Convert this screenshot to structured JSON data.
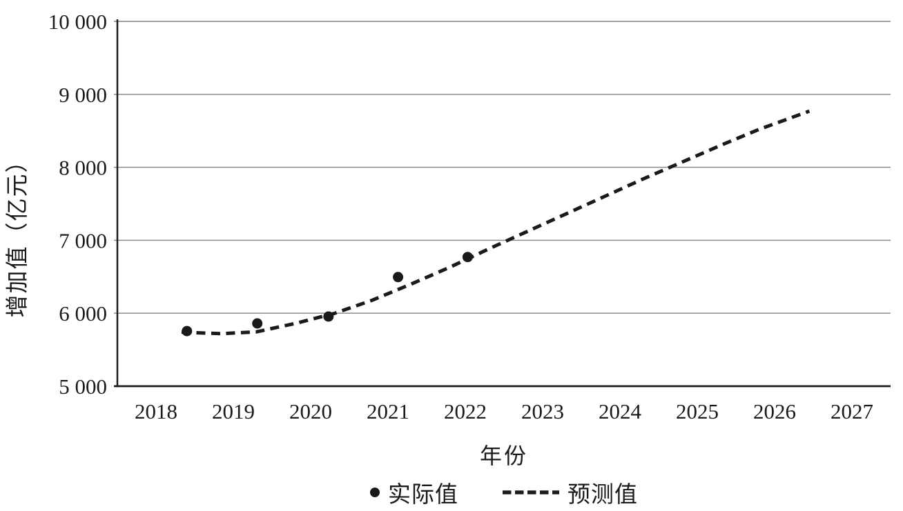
{
  "figure": {
    "background": "#ffffff",
    "text_color": "#1a1a1a",
    "gridline_color": "#828282",
    "axis_color": "#1a1a1a",
    "series_color": "#1a1a1a"
  },
  "chart_data": {
    "type": "scatter",
    "title": "",
    "xlabel": "年份",
    "ylabel": "增加值（亿元）",
    "x_categories": [
      "2018",
      "2019",
      "2020",
      "2021",
      "2022",
      "2023",
      "2024",
      "2025",
      "2026",
      "2027"
    ],
    "ylim": [
      5000,
      10000
    ],
    "ytick_values": [
      5000,
      6000,
      7000,
      8000,
      9000,
      10000
    ],
    "ytick_labels": [
      "5 000",
      "6 000",
      "7 000",
      "8 000",
      "9 000",
      "10 000"
    ],
    "grid": "horizontal-only",
    "legend_position": "bottom",
    "series": [
      {
        "name": "实际值",
        "type": "scatter",
        "marker": "filled-circle",
        "color": "#1a1a1a",
        "points": [
          [
            2018.4,
            5755
          ],
          [
            2019.31,
            5860
          ],
          [
            2020.23,
            5955
          ],
          [
            2021.13,
            6495
          ],
          [
            2022.03,
            6770
          ]
        ]
      },
      {
        "name": "预测值",
        "type": "line",
        "line_style": "dashed",
        "color": "#1a1a1a",
        "points": [
          [
            2018.33,
            5740
          ],
          [
            2018.85,
            5720
          ],
          [
            2019.3,
            5745
          ],
          [
            2019.8,
            5860
          ],
          [
            2020.3,
            5995
          ],
          [
            2020.8,
            6180
          ],
          [
            2021.3,
            6400
          ],
          [
            2021.8,
            6630
          ],
          [
            2022.3,
            6880
          ],
          [
            2022.8,
            7120
          ],
          [
            2023.3,
            7360
          ],
          [
            2023.8,
            7600
          ],
          [
            2024.3,
            7840
          ],
          [
            2024.8,
            8070
          ],
          [
            2025.3,
            8300
          ],
          [
            2025.8,
            8520
          ],
          [
            2026.45,
            8770
          ]
        ]
      }
    ]
  }
}
